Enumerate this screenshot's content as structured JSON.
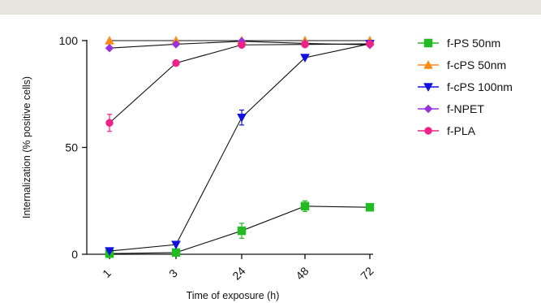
{
  "chart_data": {
    "type": "line",
    "xlabel": "Time of exposure (h)",
    "ylabel": "Internalization (% positive cells)",
    "categories": [
      "1",
      "3",
      "24",
      "48",
      "72"
    ],
    "ylim": [
      0,
      100
    ],
    "yticks": [
      0,
      50,
      100
    ],
    "legend_position": "right",
    "series": [
      {
        "name": "f-PS 50nm",
        "color": "#22bb22",
        "marker": "square",
        "values": [
          0.3,
          0.8,
          11,
          22.5,
          22
        ],
        "errors": [
          null,
          null,
          3.5,
          2.5,
          null
        ]
      },
      {
        "name": "f-cPS 50nm",
        "color": "#ff8c1a",
        "marker": "triangle-up",
        "values": [
          100,
          100,
          100,
          100,
          100
        ],
        "errors": [
          null,
          null,
          null,
          null,
          null
        ]
      },
      {
        "name": "f-cPS 100nm",
        "color": "#1111dd",
        "marker": "triangle-down",
        "values": [
          1.5,
          4.5,
          64,
          92,
          98.5
        ],
        "errors": [
          null,
          null,
          3.5,
          null,
          null
        ]
      },
      {
        "name": "f-NPET",
        "color": "#9933dd",
        "marker": "diamond",
        "values": [
          96.5,
          98.3,
          99.7,
          98.7,
          98
        ],
        "errors": [
          null,
          null,
          null,
          null,
          null
        ]
      },
      {
        "name": "f-PLA",
        "color": "#ee2288",
        "marker": "circle",
        "values": [
          61.5,
          89.5,
          98,
          98.2,
          98.5
        ],
        "errors": [
          4,
          null,
          null,
          null,
          null
        ]
      }
    ]
  }
}
